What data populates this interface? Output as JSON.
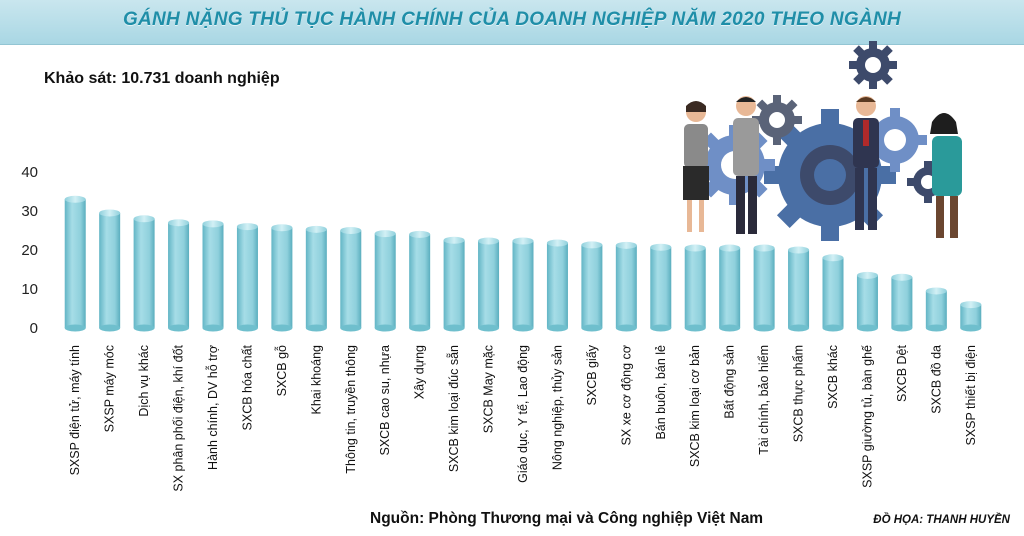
{
  "header": {
    "title": "GÁNH NẶNG THỦ TỤC HÀNH CHÍNH CỦA DOANH NGHIỆP NĂM 2020 THEO NGÀNH",
    "survey": "Khảo sát: 10.731 doanh nghiệp"
  },
  "footer": {
    "source": "Nguồn: Phòng Thương mại và Công nghiệp Việt Nam",
    "credit": "ĐỒ HỌA: THANH HUYỀN"
  },
  "illustration": {
    "icon": "business-people-gears-illustration"
  },
  "colors": {
    "bar_body": "#8fd0dc",
    "bar_light": "#b8e4ec",
    "bar_dark": "#5fb4c4",
    "title_text": "#1f8ea8",
    "gear_blue": "#4a6fa5",
    "gear_dark": "#3d4a6b",
    "gear_light": "#6f8fc6"
  },
  "chart_data": {
    "type": "bar",
    "title": "GÁNH NẶNG THỦ TỤC HÀNH CHÍNH CỦA DOANH NGHIỆP NĂM 2020 THEO NGÀNH",
    "xlabel": "",
    "ylabel": "",
    "ylim": [
      0,
      40
    ],
    "yticks": [
      0,
      10,
      20,
      30,
      40
    ],
    "grid": false,
    "categories": [
      "SXSP điện tử, máy tính",
      "SXSP máy móc",
      "Dịch vụ khác",
      "SX phân phối điện, khí đốt",
      "Hành chính, DV hỗ trợ",
      "SXCB hóa chất",
      "SXCB gỗ",
      "Khai khoáng",
      "Thông tin, truyền thông",
      "SXCB cao su, nhựa",
      "Xây dựng",
      "SXCB kim loại đúc sẵn",
      "SXCB May mặc",
      "Giáo dục, Y tế, Lao động",
      "Nông nghiệp, thủy sản",
      "SXCB giấy",
      "SX xe cơ động cơ",
      "Bán buôn, bán lẻ",
      "SXCB kim loại cơ bản",
      "Bất động sản",
      "Tài chính, bảo hiểm",
      "SXCB thực phẩm",
      "SXCB khác",
      "SXSP giường tủ, bàn ghế",
      "SXCB Dệt",
      "SXCB đồ da",
      "SXSP thiết bị điện"
    ],
    "values": [
      33,
      29.5,
      28,
      27,
      26.7,
      26,
      25.7,
      25.3,
      25,
      24.2,
      24,
      22.5,
      22.3,
      22.3,
      21.8,
      21.3,
      21.2,
      20.7,
      20.5,
      20.5,
      20.5,
      20,
      18,
      13.5,
      13,
      9.5,
      6
    ]
  }
}
